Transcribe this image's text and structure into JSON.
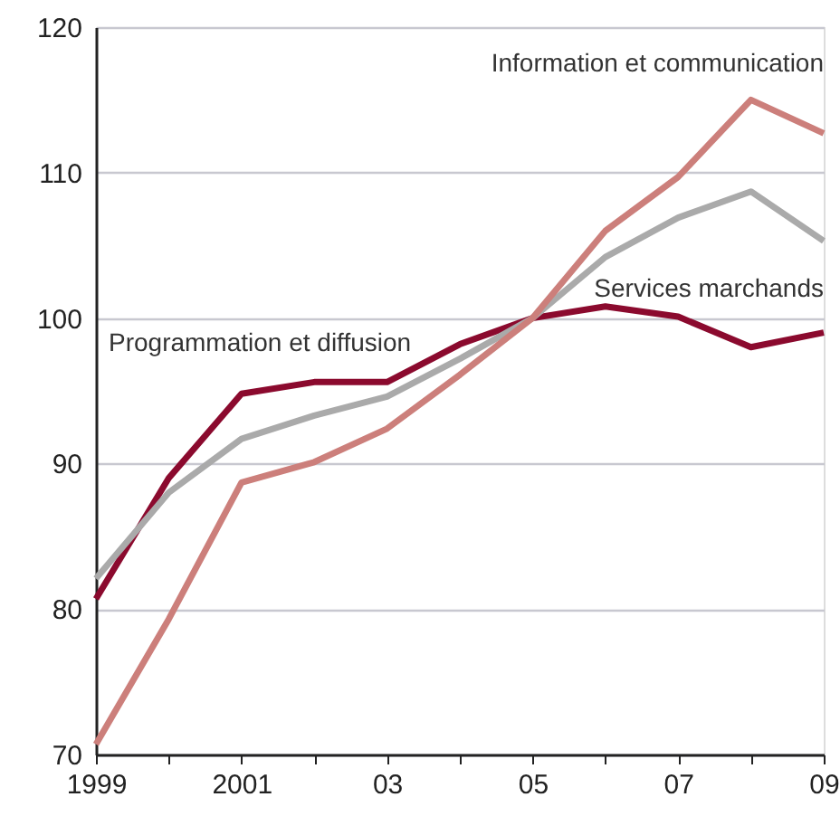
{
  "chart_data": {
    "type": "line",
    "x": [
      1999,
      2000,
      2001,
      2002,
      2003,
      2004,
      2005,
      2006,
      2007,
      2008,
      2009
    ],
    "series": [
      {
        "name": "Programmation et diffusion",
        "color": "#8b0a2e",
        "values": [
          80.7,
          89,
          94.8,
          95.6,
          95.6,
          98.2,
          100,
          100.8,
          100.1,
          98,
          99
        ]
      },
      {
        "name": "Services marchands",
        "color": "#aaaaaa",
        "values": [
          82.1,
          88,
          91.7,
          93.3,
          94.6,
          97.2,
          100,
          104.2,
          106.9,
          108.7,
          105.3
        ]
      },
      {
        "name": "Information et communication",
        "color": "#cc7f7b",
        "values": [
          70.7,
          79.3,
          88.7,
          90.1,
          92.4,
          96.1,
          100,
          106,
          109.7,
          115,
          112.7
        ]
      }
    ],
    "xlim": [
      1999,
      2009
    ],
    "xticks": [
      {
        "value": 1999,
        "label": "1999"
      },
      {
        "value": 2000,
        "label": null
      },
      {
        "value": 2001,
        "label": "2001"
      },
      {
        "value": 2002,
        "label": null
      },
      {
        "value": 2003,
        "label": "03"
      },
      {
        "value": 2004,
        "label": null
      },
      {
        "value": 2005,
        "label": "05"
      },
      {
        "value": 2006,
        "label": null
      },
      {
        "value": 2007,
        "label": "07"
      },
      {
        "value": 2008,
        "label": null
      },
      {
        "value": 2009,
        "label": "09"
      }
    ],
    "ylim": [
      70,
      120
    ],
    "yticks": [
      70,
      80,
      90,
      100,
      110,
      120
    ],
    "grid": "y",
    "legend": false,
    "marker": "none",
    "line_style": "solid"
  }
}
